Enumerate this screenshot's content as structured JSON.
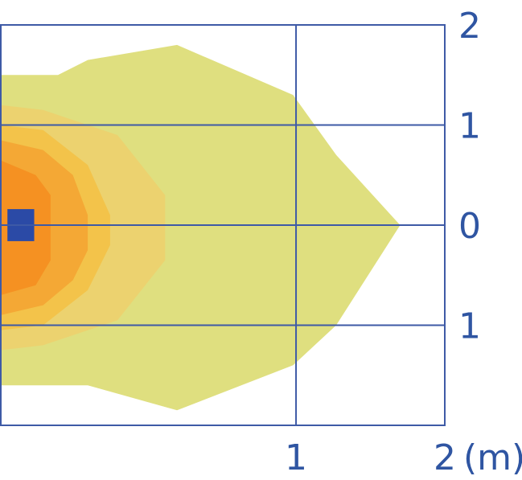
{
  "chart_data": {
    "type": "heatmap",
    "title": "",
    "xlabel": "",
    "ylabel": "",
    "x_unit": "(m)",
    "xlim": [
      -0.99,
      2.0
    ],
    "ylim": [
      -2.0,
      2.0
    ],
    "x_ticks": [
      1,
      2
    ],
    "x_tick_labels": [
      "1",
      "2"
    ],
    "y_ticks": [
      2,
      1,
      0,
      -1
    ],
    "y_tick_labels": [
      "2",
      "1",
      "0",
      "1"
    ],
    "grid": true,
    "legend": "none",
    "colors": {
      "frame": "#3e5aa6",
      "tick_text": "#2f55a2",
      "source_marker": "#2b4aa6"
    },
    "source_marker": {
      "x": -0.85,
      "y": 0.0,
      "width": 0.18,
      "height": 0.32
    },
    "contours": [
      {
        "level": 1,
        "color": "#dfdf7f",
        "points": [
          [
            -0.99,
            1.5
          ],
          [
            -0.6,
            1.5
          ],
          [
            -0.4,
            1.65
          ],
          [
            0.2,
            1.8
          ],
          [
            0.98,
            1.3
          ],
          [
            1.27,
            0.7
          ],
          [
            1.7,
            0.0
          ],
          [
            1.27,
            -1.0
          ],
          [
            0.98,
            -1.4
          ],
          [
            0.2,
            -1.85
          ],
          [
            -0.4,
            -1.6
          ],
          [
            -0.99,
            -1.6
          ]
        ]
      },
      {
        "level": 2,
        "color": "#ecd26f",
        "points": [
          [
            -0.99,
            1.2
          ],
          [
            -0.7,
            1.15
          ],
          [
            -0.2,
            0.9
          ],
          [
            0.12,
            0.3
          ],
          [
            0.12,
            -0.35
          ],
          [
            -0.2,
            -0.95
          ],
          [
            -0.7,
            -1.2
          ],
          [
            -0.99,
            -1.25
          ]
        ]
      },
      {
        "level": 3,
        "color": "#f3c34a",
        "points": [
          [
            -0.99,
            1.0
          ],
          [
            -0.7,
            0.95
          ],
          [
            -0.4,
            0.6
          ],
          [
            -0.25,
            0.1
          ],
          [
            -0.25,
            -0.2
          ],
          [
            -0.4,
            -0.65
          ],
          [
            -0.7,
            -1.0
          ],
          [
            -0.99,
            -1.05
          ]
        ]
      },
      {
        "level": 4,
        "color": "#f4a835",
        "points": [
          [
            -0.99,
            0.85
          ],
          [
            -0.7,
            0.75
          ],
          [
            -0.5,
            0.5
          ],
          [
            -0.4,
            0.1
          ],
          [
            -0.4,
            -0.25
          ],
          [
            -0.5,
            -0.55
          ],
          [
            -0.7,
            -0.8
          ],
          [
            -0.99,
            -0.9
          ]
        ]
      },
      {
        "level": 5,
        "color": "#f59122",
        "points": [
          [
            -0.99,
            0.65
          ],
          [
            -0.75,
            0.5
          ],
          [
            -0.65,
            0.3
          ],
          [
            -0.65,
            -0.35
          ],
          [
            -0.75,
            -0.6
          ],
          [
            -0.99,
            -0.7
          ]
        ]
      }
    ]
  }
}
